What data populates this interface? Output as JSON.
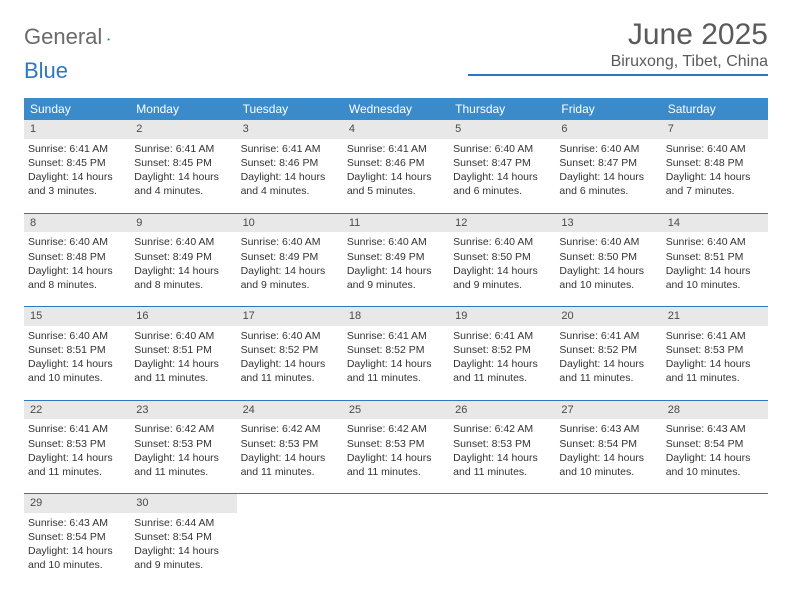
{
  "brand": {
    "word1": "General",
    "word2": "Blue"
  },
  "title": {
    "month": "June 2025",
    "location": "Biruxong, Tibet, China"
  },
  "colors": {
    "header_bar": "#3b8bca",
    "header_text": "#ffffff",
    "accent_line": "#2e78c2",
    "daynum_bg": "#e8e8e8",
    "body_text": "#333333",
    "title_text": "#5a5a5a"
  },
  "day_names": [
    "Sunday",
    "Monday",
    "Tuesday",
    "Wednesday",
    "Thursday",
    "Friday",
    "Saturday"
  ],
  "weeks": [
    [
      {
        "n": "1",
        "sunrise": "Sunrise: 6:41 AM",
        "sunset": "Sunset: 8:45 PM",
        "d1": "Daylight: 14 hours",
        "d2": "and 3 minutes."
      },
      {
        "n": "2",
        "sunrise": "Sunrise: 6:41 AM",
        "sunset": "Sunset: 8:45 PM",
        "d1": "Daylight: 14 hours",
        "d2": "and 4 minutes."
      },
      {
        "n": "3",
        "sunrise": "Sunrise: 6:41 AM",
        "sunset": "Sunset: 8:46 PM",
        "d1": "Daylight: 14 hours",
        "d2": "and 4 minutes."
      },
      {
        "n": "4",
        "sunrise": "Sunrise: 6:41 AM",
        "sunset": "Sunset: 8:46 PM",
        "d1": "Daylight: 14 hours",
        "d2": "and 5 minutes."
      },
      {
        "n": "5",
        "sunrise": "Sunrise: 6:40 AM",
        "sunset": "Sunset: 8:47 PM",
        "d1": "Daylight: 14 hours",
        "d2": "and 6 minutes."
      },
      {
        "n": "6",
        "sunrise": "Sunrise: 6:40 AM",
        "sunset": "Sunset: 8:47 PM",
        "d1": "Daylight: 14 hours",
        "d2": "and 6 minutes."
      },
      {
        "n": "7",
        "sunrise": "Sunrise: 6:40 AM",
        "sunset": "Sunset: 8:48 PM",
        "d1": "Daylight: 14 hours",
        "d2": "and 7 minutes."
      }
    ],
    [
      {
        "n": "8",
        "sunrise": "Sunrise: 6:40 AM",
        "sunset": "Sunset: 8:48 PM",
        "d1": "Daylight: 14 hours",
        "d2": "and 8 minutes."
      },
      {
        "n": "9",
        "sunrise": "Sunrise: 6:40 AM",
        "sunset": "Sunset: 8:49 PM",
        "d1": "Daylight: 14 hours",
        "d2": "and 8 minutes."
      },
      {
        "n": "10",
        "sunrise": "Sunrise: 6:40 AM",
        "sunset": "Sunset: 8:49 PM",
        "d1": "Daylight: 14 hours",
        "d2": "and 9 minutes."
      },
      {
        "n": "11",
        "sunrise": "Sunrise: 6:40 AM",
        "sunset": "Sunset: 8:49 PM",
        "d1": "Daylight: 14 hours",
        "d2": "and 9 minutes."
      },
      {
        "n": "12",
        "sunrise": "Sunrise: 6:40 AM",
        "sunset": "Sunset: 8:50 PM",
        "d1": "Daylight: 14 hours",
        "d2": "and 9 minutes."
      },
      {
        "n": "13",
        "sunrise": "Sunrise: 6:40 AM",
        "sunset": "Sunset: 8:50 PM",
        "d1": "Daylight: 14 hours",
        "d2": "and 10 minutes."
      },
      {
        "n": "14",
        "sunrise": "Sunrise: 6:40 AM",
        "sunset": "Sunset: 8:51 PM",
        "d1": "Daylight: 14 hours",
        "d2": "and 10 minutes."
      }
    ],
    [
      {
        "n": "15",
        "sunrise": "Sunrise: 6:40 AM",
        "sunset": "Sunset: 8:51 PM",
        "d1": "Daylight: 14 hours",
        "d2": "and 10 minutes."
      },
      {
        "n": "16",
        "sunrise": "Sunrise: 6:40 AM",
        "sunset": "Sunset: 8:51 PM",
        "d1": "Daylight: 14 hours",
        "d2": "and 11 minutes."
      },
      {
        "n": "17",
        "sunrise": "Sunrise: 6:40 AM",
        "sunset": "Sunset: 8:52 PM",
        "d1": "Daylight: 14 hours",
        "d2": "and 11 minutes."
      },
      {
        "n": "18",
        "sunrise": "Sunrise: 6:41 AM",
        "sunset": "Sunset: 8:52 PM",
        "d1": "Daylight: 14 hours",
        "d2": "and 11 minutes."
      },
      {
        "n": "19",
        "sunrise": "Sunrise: 6:41 AM",
        "sunset": "Sunset: 8:52 PM",
        "d1": "Daylight: 14 hours",
        "d2": "and 11 minutes."
      },
      {
        "n": "20",
        "sunrise": "Sunrise: 6:41 AM",
        "sunset": "Sunset: 8:52 PM",
        "d1": "Daylight: 14 hours",
        "d2": "and 11 minutes."
      },
      {
        "n": "21",
        "sunrise": "Sunrise: 6:41 AM",
        "sunset": "Sunset: 8:53 PM",
        "d1": "Daylight: 14 hours",
        "d2": "and 11 minutes."
      }
    ],
    [
      {
        "n": "22",
        "sunrise": "Sunrise: 6:41 AM",
        "sunset": "Sunset: 8:53 PM",
        "d1": "Daylight: 14 hours",
        "d2": "and 11 minutes."
      },
      {
        "n": "23",
        "sunrise": "Sunrise: 6:42 AM",
        "sunset": "Sunset: 8:53 PM",
        "d1": "Daylight: 14 hours",
        "d2": "and 11 minutes."
      },
      {
        "n": "24",
        "sunrise": "Sunrise: 6:42 AM",
        "sunset": "Sunset: 8:53 PM",
        "d1": "Daylight: 14 hours",
        "d2": "and 11 minutes."
      },
      {
        "n": "25",
        "sunrise": "Sunrise: 6:42 AM",
        "sunset": "Sunset: 8:53 PM",
        "d1": "Daylight: 14 hours",
        "d2": "and 11 minutes."
      },
      {
        "n": "26",
        "sunrise": "Sunrise: 6:42 AM",
        "sunset": "Sunset: 8:53 PM",
        "d1": "Daylight: 14 hours",
        "d2": "and 11 minutes."
      },
      {
        "n": "27",
        "sunrise": "Sunrise: 6:43 AM",
        "sunset": "Sunset: 8:54 PM",
        "d1": "Daylight: 14 hours",
        "d2": "and 10 minutes."
      },
      {
        "n": "28",
        "sunrise": "Sunrise: 6:43 AM",
        "sunset": "Sunset: 8:54 PM",
        "d1": "Daylight: 14 hours",
        "d2": "and 10 minutes."
      }
    ],
    [
      {
        "n": "29",
        "sunrise": "Sunrise: 6:43 AM",
        "sunset": "Sunset: 8:54 PM",
        "d1": "Daylight: 14 hours",
        "d2": "and 10 minutes."
      },
      {
        "n": "30",
        "sunrise": "Sunrise: 6:44 AM",
        "sunset": "Sunset: 8:54 PM",
        "d1": "Daylight: 14 hours",
        "d2": "and 9 minutes."
      },
      null,
      null,
      null,
      null,
      null
    ]
  ]
}
